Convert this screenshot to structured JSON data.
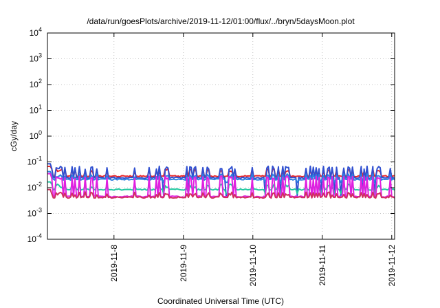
{
  "chart_data": {
    "type": "line",
    "title": "/data/run/goesPlots/archive/2019-11-12/01:00/flux/../bryn/5daysMoon.plot",
    "xlabel": "Coordinated Universal Time (UTC)",
    "ylabel": "cGy/day",
    "y_scale": "log",
    "ylim": [
      0.0001,
      10000
    ],
    "y_ticks": [
      {
        "value": 0.0001,
        "base": "10",
        "exp": "-4"
      },
      {
        "value": 0.001,
        "base": "10",
        "exp": "-3"
      },
      {
        "value": 0.01,
        "base": "10",
        "exp": "-2"
      },
      {
        "value": 0.1,
        "base": "10",
        "exp": "-1"
      },
      {
        "value": 1,
        "base": "10",
        "exp": "0"
      },
      {
        "value": 10,
        "base": "10",
        "exp": "1"
      },
      {
        "value": 100,
        "base": "10",
        "exp": "2"
      },
      {
        "value": 1000,
        "base": "10",
        "exp": "3"
      },
      {
        "value": 10000,
        "base": "10",
        "exp": "4"
      }
    ],
    "xlim": [
      "2019-11-07 01:00",
      "2019-11-12 01:00"
    ],
    "x_ticks": [
      {
        "value": "2019-11-08 00:00",
        "label": "2019-11-8"
      },
      {
        "value": "2019-11-09 00:00",
        "label": "2019-11-9"
      },
      {
        "value": "2019-11-10 00:00",
        "label": "2019-11-10"
      },
      {
        "value": "2019-11-11 00:00",
        "label": "2019-11-11"
      },
      {
        "value": "2019-11-12 00:00",
        "label": "2019-11-12"
      }
    ],
    "grid": true,
    "series": [
      {
        "color": "#e8262a",
        "base": 0.028,
        "spike": 0.048,
        "dip": 0.028
      },
      {
        "color": "#3050d0",
        "base": 0.024,
        "spike": 0.06,
        "dip": 0.005
      },
      {
        "color": "#2f7fe0",
        "base": 0.021,
        "spike": 0.03,
        "dip": 0.016
      },
      {
        "color": "#20c8a0",
        "base": 0.0085,
        "spike": 0.012,
        "dip": 0.006
      },
      {
        "color": "#e020e0",
        "base": 0.0045,
        "spike": 0.025,
        "dip": 0.0045
      },
      {
        "color": "#d03060",
        "base": 0.0042,
        "spike": 0.006,
        "dip": 0.0042
      }
    ]
  }
}
